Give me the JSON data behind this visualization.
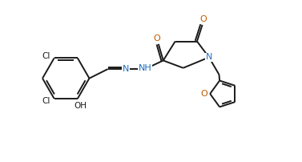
{
  "bg_color": "#ffffff",
  "bond_color": "#1a1a1a",
  "color_N": "#1f6fbf",
  "color_O": "#bf5a00",
  "color_Cl": "#1a1a1a",
  "lw": 1.4,
  "xlim": [
    0,
    10.5
  ],
  "ylim": [
    0,
    6.0
  ]
}
